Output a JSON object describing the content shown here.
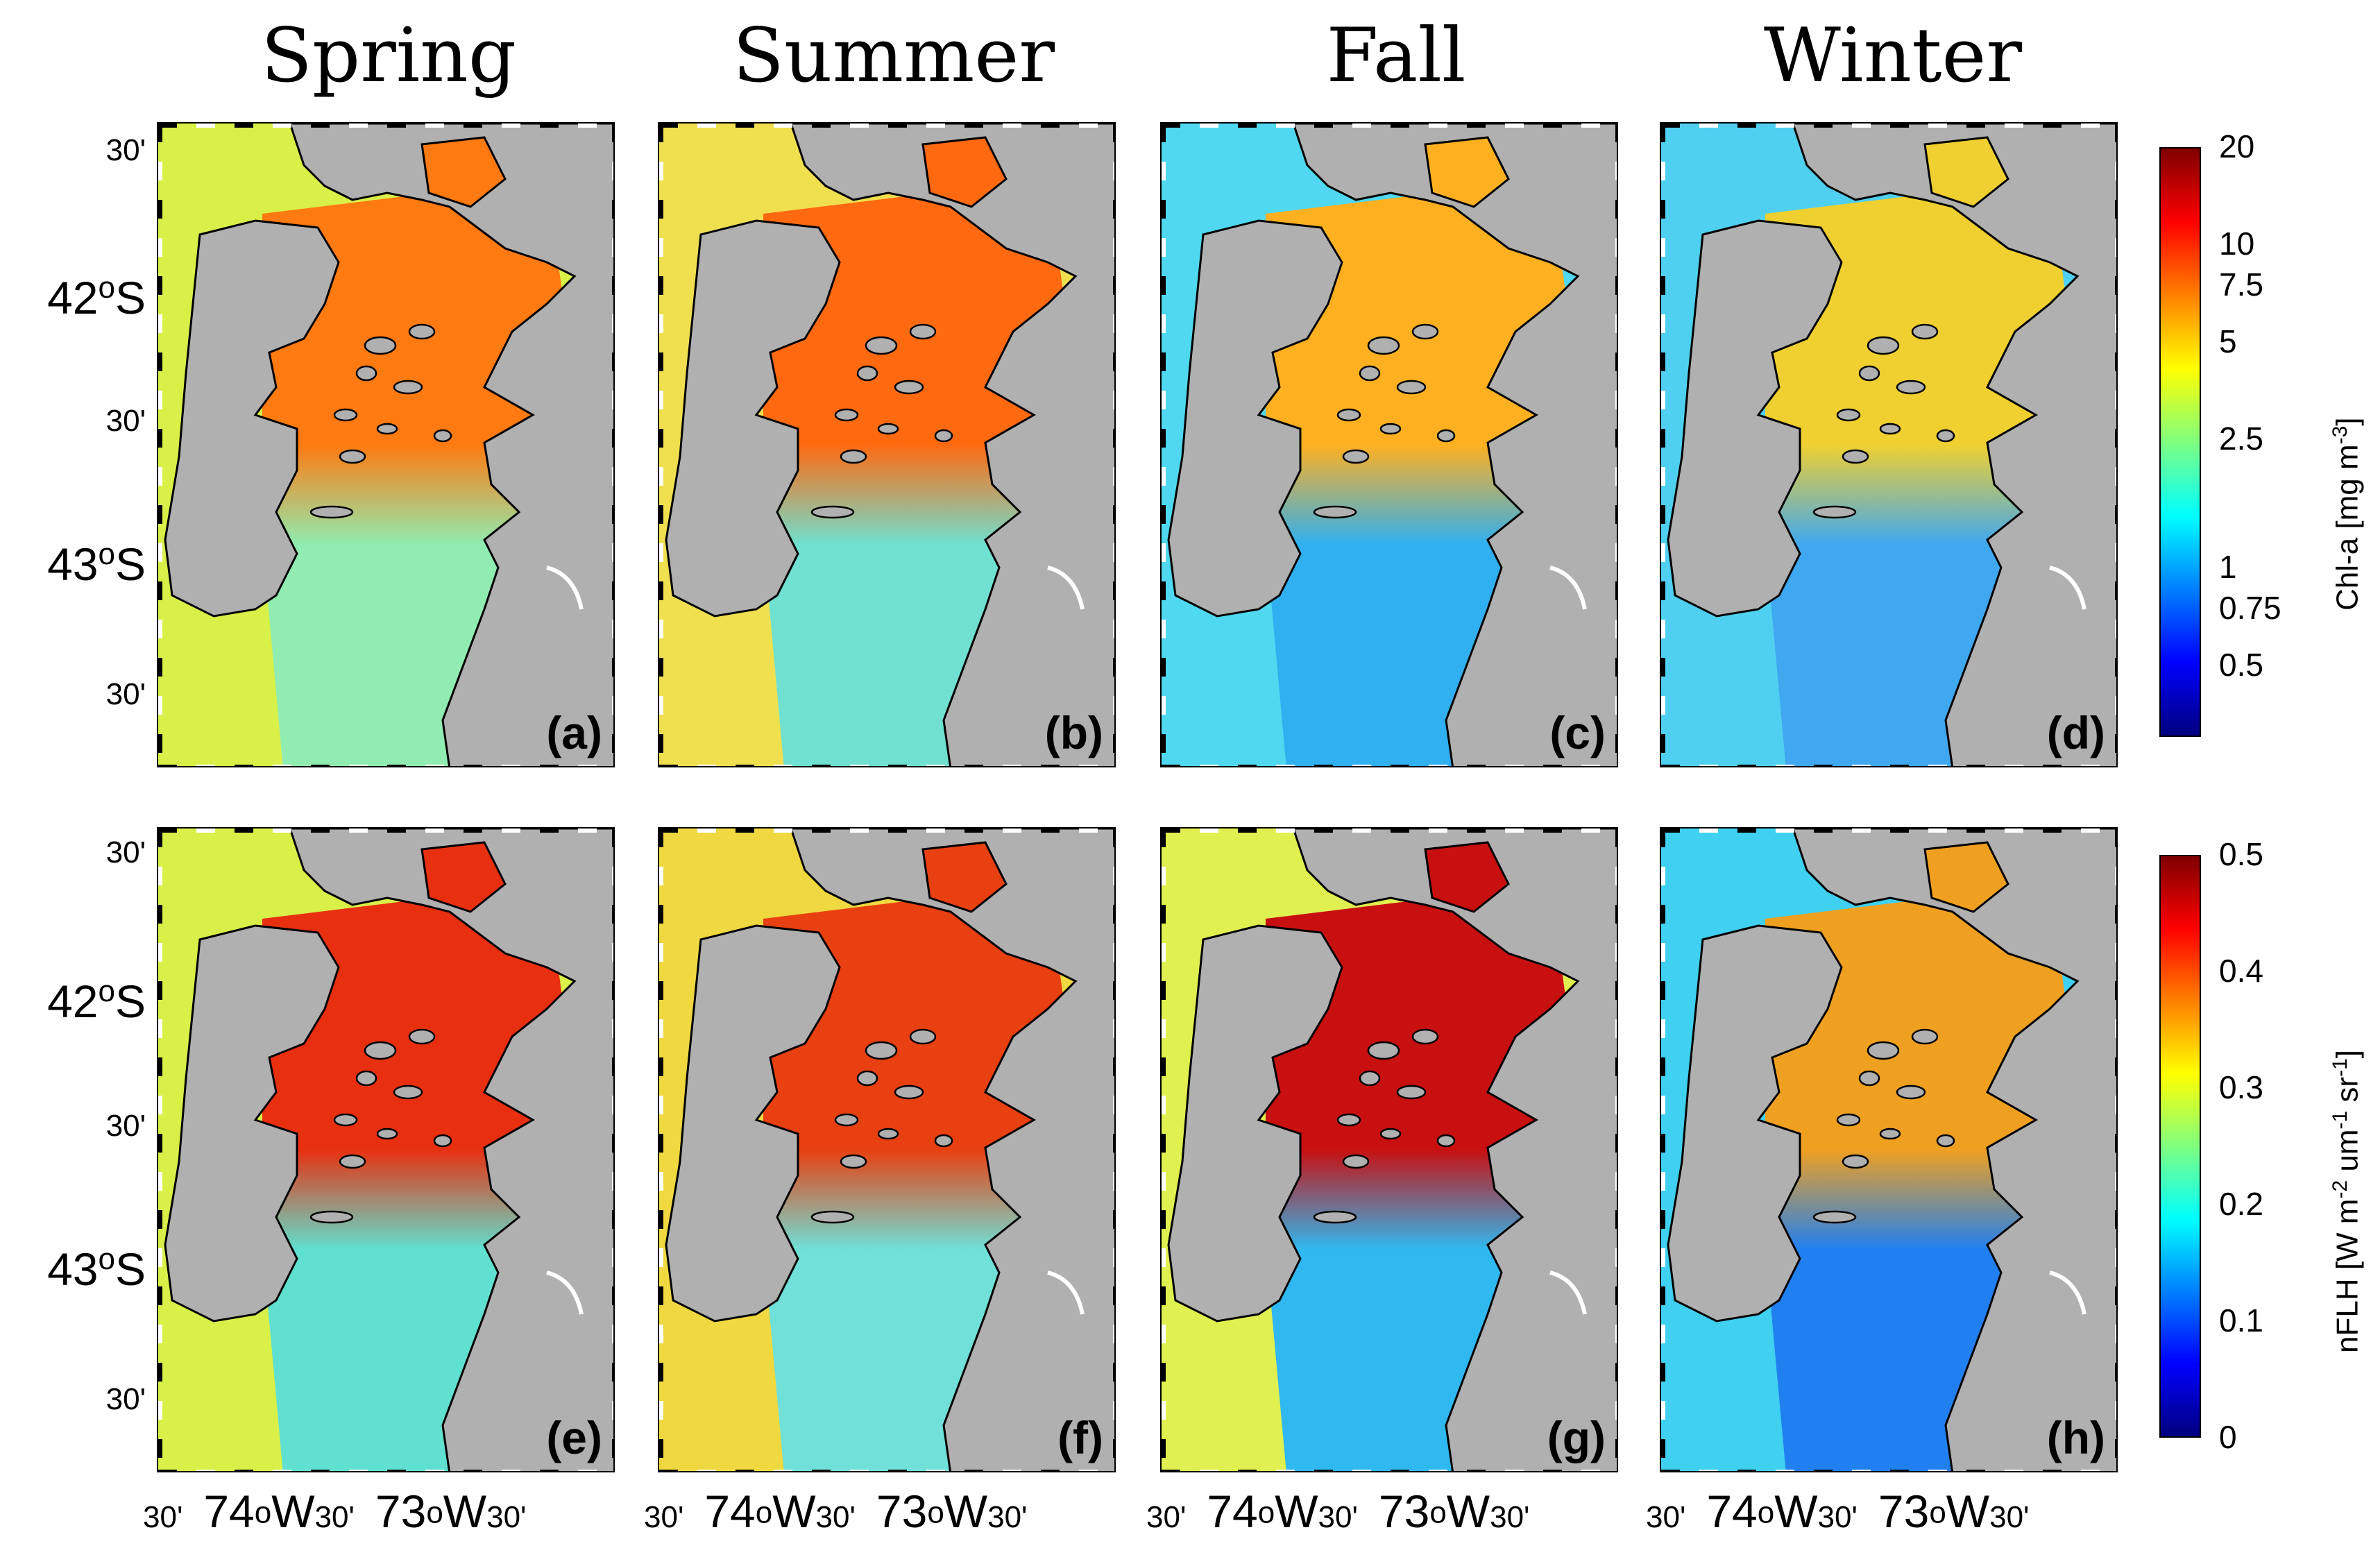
{
  "seasons": [
    "Spring",
    "Summer",
    "Fall",
    "Winter"
  ],
  "panel_labels": [
    "(a)",
    "(b)",
    "(c)",
    "(d)",
    "(e)",
    "(f)",
    "(g)",
    "(h)"
  ],
  "lat_labels": {
    "row1": [
      "30'",
      "42",
      "S",
      "30'",
      "43",
      "S",
      "30'"
    ],
    "row2": [
      "30'",
      "42",
      "S",
      "30'",
      "43",
      "S",
      "30'"
    ]
  },
  "lon_labels": [
    {
      "pre": "30'",
      "a": "74",
      "b": "W",
      "mid": "30'",
      "c": "73",
      "d": "W",
      "post": "30'"
    },
    {
      "pre": "30'",
      "a": "74",
      "b": "W",
      "mid": "30'",
      "c": "73",
      "d": "W",
      "post": "30'"
    },
    {
      "pre": "30'",
      "a": "74",
      "b": "W",
      "mid": "30'",
      "c": "73",
      "d": "W",
      "post": "30'"
    },
    {
      "pre": "30'",
      "a": "74",
      "b": "W",
      "mid": "30'",
      "c": "73",
      "d": "W",
      "post": "30'"
    }
  ],
  "degree_symbol": "o",
  "colorbar_chl": {
    "ticks": [
      "20",
      "10",
      "7.5",
      "5",
      "2.5",
      "1",
      "0.75",
      "0.5"
    ],
    "title_main": "Chl-a [mg m",
    "title_sup": "-3",
    "title_end": "]",
    "scale": "log"
  },
  "colorbar_flh": {
    "ticks": [
      "0.5",
      "0.4",
      "0.3",
      "0.2",
      "0.1",
      "0"
    ],
    "title_main": "nFLH [W m",
    "sup1": "-2",
    "mid1": " um",
    "sup2": "-1",
    "mid2": " sr",
    "sup3": "-1",
    "title_end": "]",
    "scale": "linear"
  },
  "colors": {
    "land": "#b0b0b0",
    "coast": "#000000",
    "jet": [
      "#00007f",
      "#0000ff",
      "#0080ff",
      "#00ffff",
      "#80ff80",
      "#ffff00",
      "#ff8000",
      "#ff0000",
      "#7f0000"
    ]
  },
  "panel_ocean": [
    {
      "outer": "#d8f048",
      "inner": "#ff7a10",
      "south": "#90ecb0"
    },
    {
      "outer": "#f0e050",
      "inner": "#ff6a10",
      "south": "#70e0d0"
    },
    {
      "outer": "#50d8f0",
      "inner": "#ffb020",
      "south": "#30b0f0"
    },
    {
      "outer": "#50d0f0",
      "inner": "#f0d030",
      "south": "#40a8f0"
    },
    {
      "outer": "#d8f048",
      "inner": "#e83010",
      "south": "#60e0d0"
    },
    {
      "outer": "#f0d840",
      "inner": "#e84010",
      "south": "#70e0d8"
    },
    {
      "outer": "#e0f050",
      "inner": "#c81010",
      "south": "#30b8f0"
    },
    {
      "outer": "#40d0f0",
      "inner": "#f0a020",
      "south": "#2080f0"
    }
  ]
}
